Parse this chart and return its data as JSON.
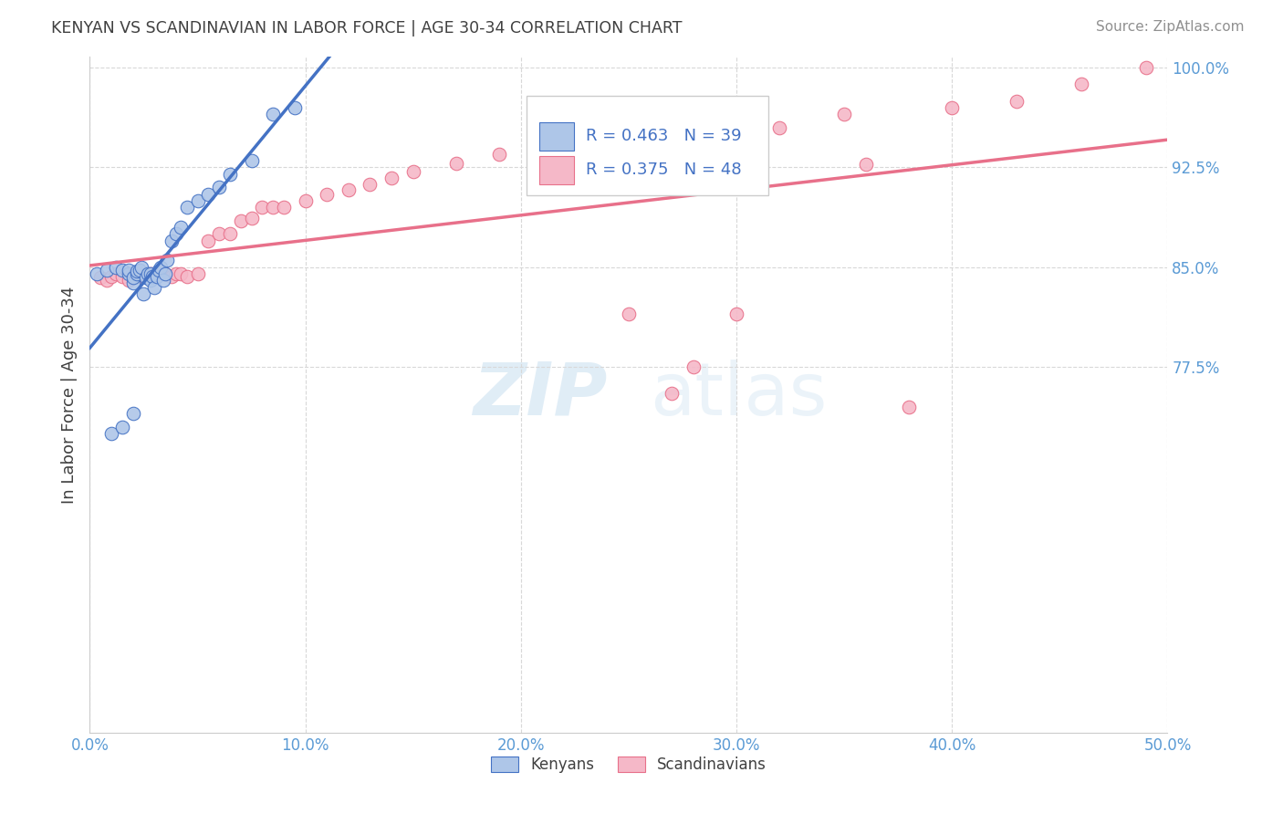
{
  "title": "KENYAN VS SCANDINAVIAN IN LABOR FORCE | AGE 30-34 CORRELATION CHART",
  "source": "Source: ZipAtlas.com",
  "ylabel": "In Labor Force | Age 30-34",
  "watermark_zip": "ZIP",
  "watermark_atlas": "atlas",
  "xmin": 0.0,
  "xmax": 0.5,
  "ymin": 0.5,
  "ymax": 1.008,
  "yticks": [
    0.775,
    0.85,
    0.925,
    1.0
  ],
  "ytick_labels": [
    "77.5%",
    "85.0%",
    "92.5%",
    "100.0%"
  ],
  "xticks": [
    0.0,
    0.1,
    0.2,
    0.3,
    0.4,
    0.5
  ],
  "xtick_labels": [
    "0.0%",
    "10.0%",
    "20.0%",
    "30.0%",
    "40.0%",
    "50.0%"
  ],
  "kenyan_r": "R = 0.463",
  "kenyan_n": "N = 39",
  "scand_r": "R = 0.375",
  "scand_n": "N = 48",
  "kenyans_x": [
    0.003,
    0.008,
    0.012,
    0.015,
    0.018,
    0.018,
    0.02,
    0.02,
    0.022,
    0.022,
    0.023,
    0.024,
    0.025,
    0.026,
    0.027,
    0.028,
    0.028,
    0.029,
    0.03,
    0.031,
    0.032,
    0.033,
    0.034,
    0.035,
    0.036,
    0.038,
    0.04,
    0.042,
    0.045,
    0.05,
    0.055,
    0.06,
    0.065,
    0.075,
    0.085,
    0.095,
    0.01,
    0.015,
    0.02
  ],
  "kenyans_y": [
    0.845,
    0.848,
    0.85,
    0.848,
    0.845,
    0.848,
    0.838,
    0.842,
    0.845,
    0.847,
    0.848,
    0.85,
    0.83,
    0.842,
    0.845,
    0.84,
    0.845,
    0.843,
    0.835,
    0.843,
    0.848,
    0.85,
    0.84,
    0.845,
    0.855,
    0.87,
    0.875,
    0.88,
    0.895,
    0.9,
    0.905,
    0.91,
    0.92,
    0.93,
    0.965,
    0.97,
    0.725,
    0.73,
    0.74
  ],
  "scandinavians_x": [
    0.005,
    0.008,
    0.01,
    0.012,
    0.015,
    0.018,
    0.02,
    0.022,
    0.025,
    0.028,
    0.03,
    0.032,
    0.035,
    0.038,
    0.04,
    0.042,
    0.045,
    0.05,
    0.055,
    0.06,
    0.065,
    0.07,
    0.075,
    0.08,
    0.085,
    0.09,
    0.1,
    0.11,
    0.12,
    0.13,
    0.14,
    0.15,
    0.17,
    0.19,
    0.21,
    0.24,
    0.27,
    0.28,
    0.3,
    0.32,
    0.35,
    0.38,
    0.4,
    0.43,
    0.46,
    0.49,
    0.36,
    0.25
  ],
  "scandinavians_y": [
    0.842,
    0.84,
    0.843,
    0.845,
    0.843,
    0.84,
    0.845,
    0.843,
    0.843,
    0.845,
    0.843,
    0.845,
    0.845,
    0.843,
    0.845,
    0.845,
    0.843,
    0.845,
    0.87,
    0.875,
    0.875,
    0.885,
    0.887,
    0.895,
    0.895,
    0.895,
    0.9,
    0.905,
    0.908,
    0.912,
    0.917,
    0.922,
    0.928,
    0.935,
    0.942,
    0.95,
    0.755,
    0.775,
    0.815,
    0.955,
    0.965,
    0.745,
    0.97,
    0.975,
    0.988,
    1.0,
    0.927,
    0.815
  ],
  "kenyan_color": "#aec6e8",
  "scandinavian_color": "#f5b8c8",
  "kenyan_line_color": "#4472c4",
  "scandinavian_line_color": "#e8708a",
  "background_color": "#ffffff",
  "grid_color": "#d8d8d8",
  "axis_label_color": "#5b9bd5",
  "title_color": "#404040",
  "source_color": "#909090",
  "legend_text_color": "#4472c4"
}
